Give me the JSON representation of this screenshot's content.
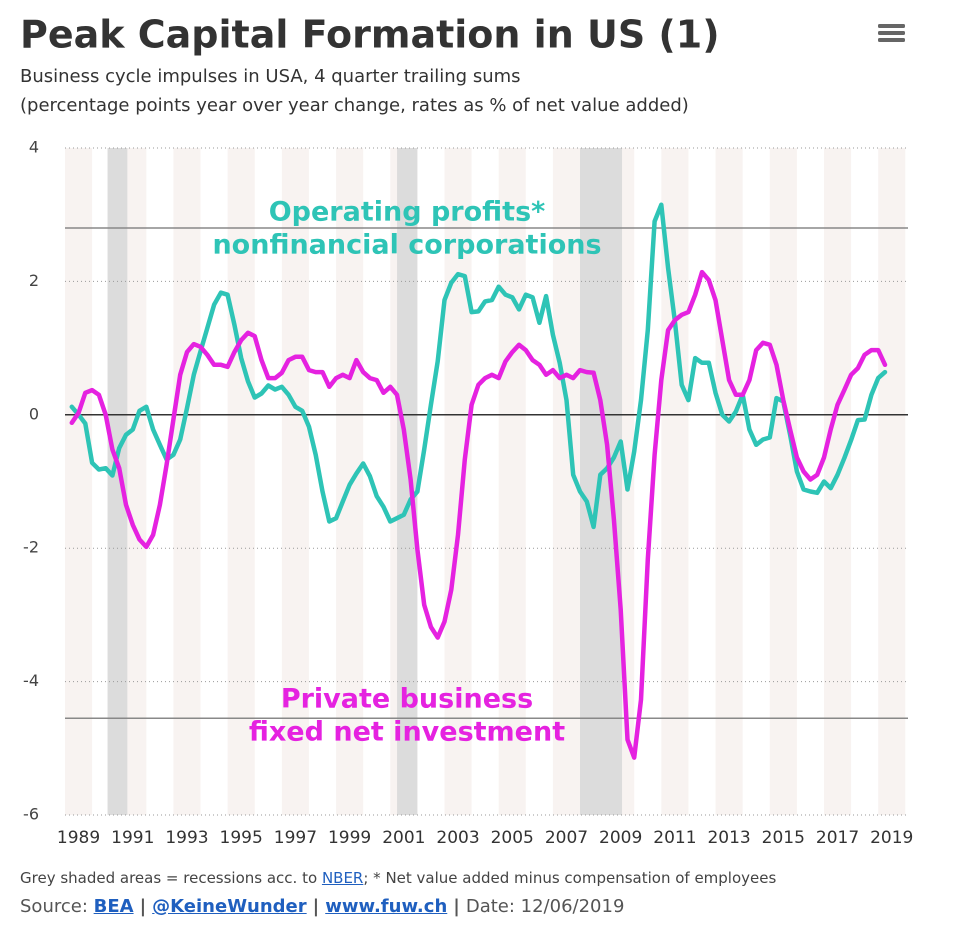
{
  "chart_data": {
    "type": "line",
    "title": "Peak Capital Formation in US (1)",
    "subtitle": [
      "Business cycle impulses in USA, 4 quarter trailing sums",
      "(percentage points year over year change, rates as % of net value added)"
    ],
    "x": [
      1988.75,
      1989,
      1989.25,
      1989.5,
      1989.75,
      1990,
      1990.25,
      1990.5,
      1990.75,
      1991,
      1991.25,
      1991.5,
      1991.75,
      1992,
      1992.25,
      1992.5,
      1992.75,
      1993,
      1993.25,
      1993.5,
      1993.75,
      1994,
      1994.25,
      1994.5,
      1994.75,
      1995,
      1995.25,
      1995.5,
      1995.75,
      1996,
      1996.25,
      1996.5,
      1996.75,
      1997,
      1997.25,
      1997.5,
      1997.75,
      1998,
      1998.25,
      1998.5,
      1998.75,
      1999,
      1999.25,
      1999.5,
      1999.75,
      2000,
      2000.25,
      2000.5,
      2000.75,
      2001,
      2001.25,
      2001.5,
      2001.75,
      2002,
      2002.25,
      2002.5,
      2002.75,
      2003,
      2003.25,
      2003.5,
      2003.75,
      2004,
      2004.25,
      2004.5,
      2004.75,
      2005,
      2005.25,
      2005.5,
      2005.75,
      2006,
      2006.25,
      2006.5,
      2006.75,
      2007,
      2007.25,
      2007.5,
      2007.75,
      2008,
      2008.25,
      2008.5,
      2008.75,
      2009,
      2009.25,
      2009.5,
      2009.75,
      2010,
      2010.25,
      2010.5,
      2010.75,
      2011,
      2011.25,
      2011.5,
      2011.75,
      2012,
      2012.25,
      2012.5,
      2012.75,
      2013,
      2013.25,
      2013.5,
      2013.75,
      2014,
      2014.25,
      2014.5,
      2014.75,
      2015,
      2015.25,
      2015.5,
      2015.75,
      2016,
      2016.25,
      2016.5,
      2016.75,
      2017,
      2017.25,
      2017.5,
      2017.75,
      2018,
      2018.25,
      2018.5,
      2018.75
    ],
    "series": [
      {
        "name": "Operating profits nonfinancial corporations",
        "color": "#2ec4b6",
        "values": [
          0.12,
          0.0,
          -0.13,
          -0.72,
          -0.82,
          -0.8,
          -0.91,
          -0.5,
          -0.3,
          -0.22,
          0.06,
          0.12,
          -0.22,
          -0.45,
          -0.67,
          -0.6,
          -0.37,
          0.1,
          0.6,
          0.95,
          1.3,
          1.65,
          1.83,
          1.8,
          1.35,
          0.85,
          0.5,
          0.26,
          0.32,
          0.44,
          0.38,
          0.42,
          0.3,
          0.12,
          0.06,
          -0.18,
          -0.6,
          -1.15,
          -1.6,
          -1.55,
          -1.3,
          -1.05,
          -0.88,
          -0.73,
          -0.92,
          -1.22,
          -1.38,
          -1.6,
          -1.55,
          -1.5,
          -1.27,
          -1.15,
          -0.52,
          0.15,
          0.8,
          1.72,
          1.98,
          2.11,
          2.08,
          1.54,
          1.55,
          1.7,
          1.72,
          1.92,
          1.8,
          1.76,
          1.58,
          1.8,
          1.76,
          1.38,
          1.78,
          1.2,
          0.78,
          0.22,
          -0.9,
          -1.15,
          -1.3,
          -1.68,
          -0.9,
          -0.8,
          -0.64,
          -0.4,
          -1.12,
          -0.55,
          0.22,
          1.27,
          2.9,
          3.15,
          2.2,
          1.4,
          0.45,
          0.22,
          0.85,
          0.78,
          0.78,
          0.33,
          0.0,
          -0.1,
          0.05,
          0.3,
          -0.22,
          -0.45,
          -0.37,
          -0.34,
          0.25,
          0.2,
          -0.3,
          -0.85,
          -1.12,
          -1.15,
          -1.17,
          -1.0,
          -1.1,
          -0.9,
          -0.65,
          -0.38,
          -0.08,
          -0.07,
          0.3,
          0.55,
          0.64
        ]
      },
      {
        "name": "Private business fixed net investment",
        "color": "#e522e0",
        "values": [
          -0.12,
          0.03,
          0.33,
          0.37,
          0.3,
          0,
          -0.52,
          -0.8,
          -1.35,
          -1.65,
          -1.87,
          -1.98,
          -1.8,
          -1.35,
          -0.75,
          -0.07,
          0.6,
          0.94,
          1.06,
          1.02,
          0.9,
          0.75,
          0.75,
          0.72,
          0.94,
          1.12,
          1.23,
          1.18,
          0.82,
          0.55,
          0.55,
          0.63,
          0.82,
          0.87,
          0.87,
          0.67,
          0.64,
          0.64,
          0.42,
          0.55,
          0.6,
          0.55,
          0.82,
          0.64,
          0.55,
          0.52,
          0.33,
          0.42,
          0.3,
          -0.22,
          -0.97,
          -2.02,
          -2.85,
          -3.18,
          -3.34,
          -3.1,
          -2.62,
          -1.8,
          -0.67,
          0.15,
          0.45,
          0.55,
          0.6,
          0.55,
          0.8,
          0.94,
          1.05,
          0.97,
          0.82,
          0.75,
          0.6,
          0.67,
          0.55,
          0.6,
          0.55,
          0.67,
          0.64,
          0.63,
          0.22,
          -0.45,
          -1.57,
          -2.92,
          -4.87,
          -5.14,
          -4.27,
          -2.17,
          -0.6,
          0.52,
          1.27,
          1.42,
          1.5,
          1.54,
          1.8,
          2.14,
          2.02,
          1.72,
          1.12,
          0.52,
          0.3,
          0.3,
          0.52,
          0.97,
          1.08,
          1.05,
          0.75,
          0.22,
          -0.22,
          -0.64,
          -0.85,
          -0.97,
          -0.9,
          -0.64,
          -0.22,
          0.15,
          0.37,
          0.6,
          0.7,
          0.9,
          0.97,
          0.97,
          0.75
        ]
      }
    ],
    "xlim": [
      1988.5,
      2019.6
    ],
    "xticks": [
      1989,
      1991,
      1993,
      1995,
      1997,
      1999,
      2001,
      2003,
      2005,
      2007,
      2009,
      2011,
      2013,
      2015,
      2017,
      2019
    ],
    "ylim": [
      -6,
      4
    ],
    "yticks": [
      4,
      2,
      0,
      -2,
      -4,
      -6
    ],
    "grid": true,
    "recessions": [
      [
        1990.07,
        1990.8
      ],
      [
        2000.75,
        2001.5
      ],
      [
        2007.5,
        2009.05
      ]
    ],
    "plot_lines": [
      2.8,
      -4.55
    ],
    "annotations": [
      {
        "lines": [
          "Operating profits*",
          "nonfinancial corporations"
        ],
        "color": "#2ec4b6"
      },
      {
        "lines": [
          "Private business",
          "fixed net investment"
        ],
        "color": "#e522e0"
      }
    ]
  },
  "footer": {
    "note_before": "Grey shaded areas = recessions acc. to",
    "note_link": "NBER",
    "note_after": "; * Net value added minus compensation of employees",
    "source_label": "Source:",
    "sources": [
      "BEA",
      "@KeineWunder",
      "www.fuw.ch"
    ],
    "separator": "|",
    "date": "Date: 12/06/2019"
  }
}
